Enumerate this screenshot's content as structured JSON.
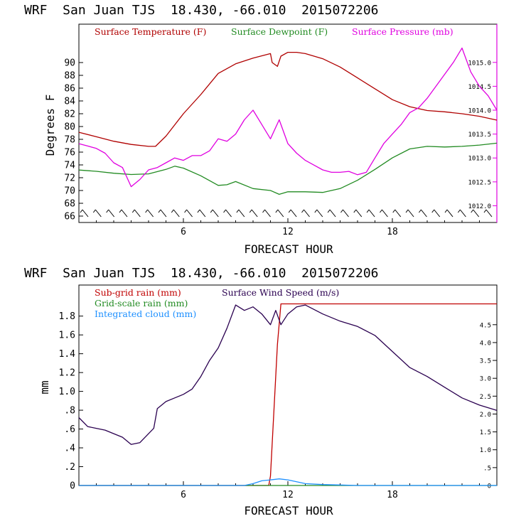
{
  "colors": {
    "temperature": "#b00000",
    "dewpoint": "#228b22",
    "pressure": "#e000e0",
    "subgrid_rain": "#c00000",
    "gridscale_rain": "#228b22",
    "cloud": "#1e90ff",
    "wind": "#2a0050",
    "frame": "#000000"
  },
  "chart_data": [
    {
      "type": "line",
      "title": "WRF  San Juan TJS  18.430, -66.010  2015072206",
      "xlabel": "FORECAST HOUR",
      "ylabel": "Degrees F",
      "xlim": [
        0,
        24
      ],
      "ylim": [
        65,
        96
      ],
      "y2lim": [
        1011.65,
        1015.8
      ],
      "x_ticks": [
        6,
        12,
        18
      ],
      "x_tick_labels": [
        "6",
        "12",
        "18"
      ],
      "y_ticks": [
        66,
        68,
        70,
        72,
        74,
        76,
        78,
        80,
        82,
        84,
        86,
        88,
        90
      ],
      "y_tick_labels": [
        "66",
        "68",
        "70",
        "72",
        "74",
        "76",
        "78",
        "80",
        "82",
        "84",
        "86",
        "88",
        "90"
      ],
      "y2_ticks": [
        1012.0,
        1012.5,
        1013.0,
        1013.5,
        1014.0,
        1014.5,
        1015.0
      ],
      "y2_tick_labels": [
        "1012.0",
        "1012.5",
        "1013.0",
        "1013.5",
        "1014.0",
        "1014.5",
        "1015.0"
      ],
      "legend_position": "top",
      "series": [
        {
          "name": "Surface Temperature (F)",
          "axis": "left",
          "x": [
            0,
            1,
            2,
            3,
            4,
            4.4,
            5,
            6,
            7,
            8,
            9,
            10,
            11,
            11.1,
            11.4,
            11.6,
            12,
            12.5,
            13,
            14,
            15,
            16,
            17,
            18,
            19,
            20,
            21,
            22,
            23,
            24
          ],
          "y": [
            79.1,
            78.4,
            77.7,
            77.2,
            76.9,
            76.9,
            78.5,
            82.0,
            85.0,
            88.3,
            89.8,
            90.7,
            91.4,
            90.0,
            89.4,
            91.0,
            91.6,
            91.6,
            91.4,
            90.6,
            89.3,
            87.6,
            85.9,
            84.2,
            83.1,
            82.5,
            82.3,
            82.0,
            81.6,
            81.0
          ]
        },
        {
          "name": "Surface Dewpoint (F)",
          "axis": "left",
          "x": [
            0,
            1,
            2,
            3,
            4,
            5,
            5.5,
            6,
            7,
            8,
            8.5,
            9,
            10,
            11,
            11.5,
            12,
            13,
            14,
            15,
            16,
            17,
            18,
            19,
            20,
            21,
            22,
            23,
            24
          ],
          "y": [
            73.2,
            73.0,
            72.7,
            72.5,
            72.6,
            73.3,
            73.8,
            73.5,
            72.3,
            70.8,
            70.9,
            71.4,
            70.3,
            70.0,
            69.4,
            69.8,
            69.8,
            69.7,
            70.3,
            71.6,
            73.3,
            75.1,
            76.5,
            76.9,
            76.8,
            76.9,
            77.1,
            77.4
          ]
        },
        {
          "name": "Surface Pressure (mb)",
          "axis": "right",
          "x": [
            0,
            0.5,
            1,
            1.5,
            2,
            2.5,
            3,
            3.5,
            4,
            4.5,
            5,
            5.5,
            6,
            6.5,
            7,
            7.5,
            8,
            8.5,
            9,
            9.5,
            10,
            10.5,
            11,
            11.5,
            12,
            12.5,
            13,
            13.5,
            14,
            14.5,
            15,
            15.5,
            16,
            16.5,
            17,
            17.5,
            18,
            18.5,
            19,
            19.5,
            20,
            20.5,
            21,
            21.5,
            22,
            22.5,
            23,
            23.5,
            24
          ],
          "y": [
            1013.3,
            1013.25,
            1013.2,
            1013.1,
            1012.9,
            1012.8,
            1012.4,
            1012.55,
            1012.75,
            1012.8,
            1012.9,
            1013.0,
            1012.95,
            1013.05,
            1013.05,
            1013.15,
            1013.4,
            1013.35,
            1013.5,
            1013.8,
            1014.0,
            1013.7,
            1013.4,
            1013.8,
            1013.3,
            1013.1,
            1012.95,
            1012.85,
            1012.75,
            1012.7,
            1012.7,
            1012.72,
            1012.65,
            1012.7,
            1013.0,
            1013.3,
            1013.5,
            1013.7,
            1013.95,
            1014.05,
            1014.25,
            1014.5,
            1014.75,
            1015.0,
            1015.3,
            1014.8,
            1014.5,
            1014.3,
            1014.0
          ]
        }
      ],
      "wind_barbs": {
        "label": "",
        "count": 32
      }
    },
    {
      "type": "line",
      "title": "WRF  San Juan TJS  18.430, -66.010  2015072206",
      "xlabel": "FORECAST HOUR",
      "ylabel": "mm",
      "xlim": [
        0,
        24
      ],
      "ylim": [
        0,
        2.13
      ],
      "y2lim": [
        0,
        5.61
      ],
      "x_ticks": [
        6,
        12,
        18
      ],
      "x_tick_labels": [
        "6",
        "12",
        "18"
      ],
      "y_ticks": [
        0,
        0.2,
        0.4,
        0.6,
        0.8,
        1.0,
        1.2,
        1.4,
        1.6,
        1.8
      ],
      "y_tick_labels": [
        "0",
        ".2",
        ".4",
        ".6",
        ".8",
        "1.0",
        "1.2",
        "1.4",
        "1.6",
        "1.8"
      ],
      "y2_ticks": [
        0,
        0.5,
        1.0,
        1.5,
        2.0,
        2.5,
        3.0,
        3.5,
        4.0,
        4.5
      ],
      "y2_tick_labels": [
        "0",
        ".5",
        "1.0",
        "1.5",
        "2.0",
        "2.5",
        "3.0",
        "3.5",
        "4.0",
        "4.5"
      ],
      "legend_position": "top-left",
      "series": [
        {
          "name": "Sub-grid rain (mm)",
          "axis": "left",
          "x": [
            0,
            10.9,
            11,
            11.4,
            11.6,
            12,
            24
          ],
          "y": [
            0,
            0,
            0.1,
            1.5,
            1.93,
            1.93,
            1.93
          ]
        },
        {
          "name": "Grid-scale rain (mm)",
          "axis": "left",
          "x": [
            0,
            24
          ],
          "y": [
            0,
            0
          ]
        },
        {
          "name": "Integrated cloud (mm)",
          "axis": "left",
          "x": [
            0,
            9.5,
            10,
            10.5,
            11,
            11.5,
            12,
            12.5,
            13,
            14,
            15,
            16,
            24
          ],
          "y": [
            0,
            0,
            0.02,
            0.05,
            0.06,
            0.07,
            0.06,
            0.04,
            0.02,
            0.01,
            0.005,
            0,
            0
          ]
        },
        {
          "name": "Surface Wind Speed (m/s)",
          "axis": "right",
          "x": [
            0,
            0.5,
            1,
            1.5,
            2,
            2.5,
            3,
            3.5,
            4,
            4.3,
            4.5,
            5,
            5.5,
            6,
            6.5,
            7,
            7.5,
            8,
            8.5,
            9,
            9.5,
            10,
            10.5,
            11,
            11.3,
            11.6,
            12,
            12.5,
            13,
            14,
            15,
            16,
            17,
            18,
            19,
            20,
            21,
            22,
            23,
            24
          ],
          "y": [
            1.9,
            1.65,
            1.6,
            1.55,
            1.45,
            1.35,
            1.15,
            1.2,
            1.45,
            1.6,
            2.15,
            2.35,
            2.45,
            2.55,
            2.7,
            3.05,
            3.5,
            3.85,
            4.4,
            5.05,
            4.9,
            5.0,
            4.8,
            4.5,
            4.9,
            4.5,
            4.8,
            5.0,
            5.05,
            4.8,
            4.6,
            4.45,
            4.2,
            3.75,
            3.3,
            3.05,
            2.75,
            2.45,
            2.25,
            2.1
          ]
        }
      ]
    }
  ]
}
